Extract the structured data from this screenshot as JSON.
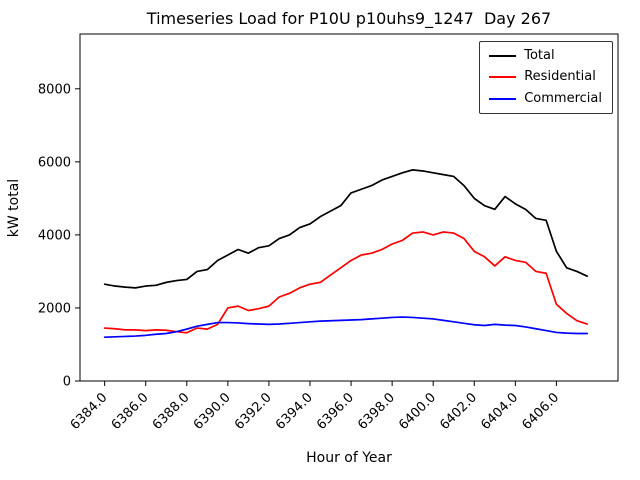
{
  "figure": {
    "background": "#ffffff",
    "axes_facecolor": "#ffffff",
    "axes_edgecolor": "#000000"
  },
  "chart_data": {
    "type": "line",
    "title": "Timeseries Load for P10U p10uhs9_1247  Day 267",
    "xlabel": "Hour of Year",
    "ylabel": "kW total",
    "xlim": [
      6382.8,
      6409.0
    ],
    "ylim": [
      0,
      9500
    ],
    "xticks": [
      6384,
      6386,
      6388,
      6390,
      6392,
      6394,
      6396,
      6398,
      6400,
      6402,
      6404,
      6406
    ],
    "xtick_labels": [
      "6384.0",
      "6386.0",
      "6388.0",
      "6390.0",
      "6392.0",
      "6394.0",
      "6396.0",
      "6398.0",
      "6400.0",
      "6402.0",
      "6404.0",
      "6406.0"
    ],
    "yticks": [
      0,
      2000,
      4000,
      6000,
      8000
    ],
    "ytick_labels": [
      "0",
      "2000",
      "4000",
      "6000",
      "8000"
    ],
    "grid": false,
    "legend_position": "upper right",
    "x": [
      6384.0,
      6384.5,
      6385.0,
      6385.5,
      6386.0,
      6386.5,
      6387.0,
      6387.5,
      6388.0,
      6388.5,
      6389.0,
      6389.5,
      6390.0,
      6390.5,
      6391.0,
      6391.5,
      6392.0,
      6392.5,
      6393.0,
      6393.5,
      6394.0,
      6394.5,
      6395.0,
      6395.5,
      6396.0,
      6396.5,
      6397.0,
      6397.5,
      6398.0,
      6398.5,
      6399.0,
      6399.5,
      6400.0,
      6400.5,
      6401.0,
      6401.5,
      6402.0,
      6402.5,
      6403.0,
      6403.5,
      6404.0,
      6404.5,
      6405.0,
      6405.5,
      6406.0,
      6406.5,
      6407.0,
      6407.5
    ],
    "series": [
      {
        "name": "Total",
        "color": "#000000",
        "values": [
          2650,
          2600,
          2570,
          2550,
          2600,
          2620,
          2700,
          2750,
          2780,
          3000,
          3050,
          3300,
          3450,
          3600,
          3500,
          3650,
          3700,
          3900,
          4000,
          4200,
          4300,
          4500,
          4650,
          4800,
          5150,
          5250,
          5350,
          5500,
          5600,
          5700,
          5780,
          5750,
          5700,
          5650,
          5600,
          5350,
          5000,
          4800,
          4700,
          5050,
          4850,
          4700,
          4450,
          4400,
          3550,
          3100,
          3000,
          2870
        ]
      },
      {
        "name": "Residential",
        "color": "#ff0000",
        "values": [
          1450,
          1430,
          1400,
          1400,
          1380,
          1400,
          1390,
          1350,
          1320,
          1450,
          1420,
          1550,
          2000,
          2050,
          1930,
          1980,
          2050,
          2300,
          2400,
          2550,
          2650,
          2700,
          2900,
          3100,
          3300,
          3450,
          3500,
          3600,
          3750,
          3850,
          4050,
          4080,
          4000,
          4080,
          4050,
          3900,
          3550,
          3400,
          3150,
          3400,
          3300,
          3250,
          3000,
          2950,
          2100,
          1850,
          1650,
          1560
        ]
      },
      {
        "name": "Commercial",
        "color": "#0000ff",
        "values": [
          1200,
          1210,
          1220,
          1230,
          1250,
          1280,
          1300,
          1350,
          1420,
          1500,
          1550,
          1600,
          1600,
          1590,
          1570,
          1560,
          1550,
          1560,
          1580,
          1600,
          1620,
          1640,
          1650,
          1660,
          1670,
          1680,
          1700,
          1720,
          1740,
          1750,
          1740,
          1720,
          1700,
          1660,
          1620,
          1580,
          1540,
          1520,
          1550,
          1530,
          1520,
          1480,
          1430,
          1380,
          1330,
          1310,
          1300,
          1300
        ]
      }
    ]
  }
}
